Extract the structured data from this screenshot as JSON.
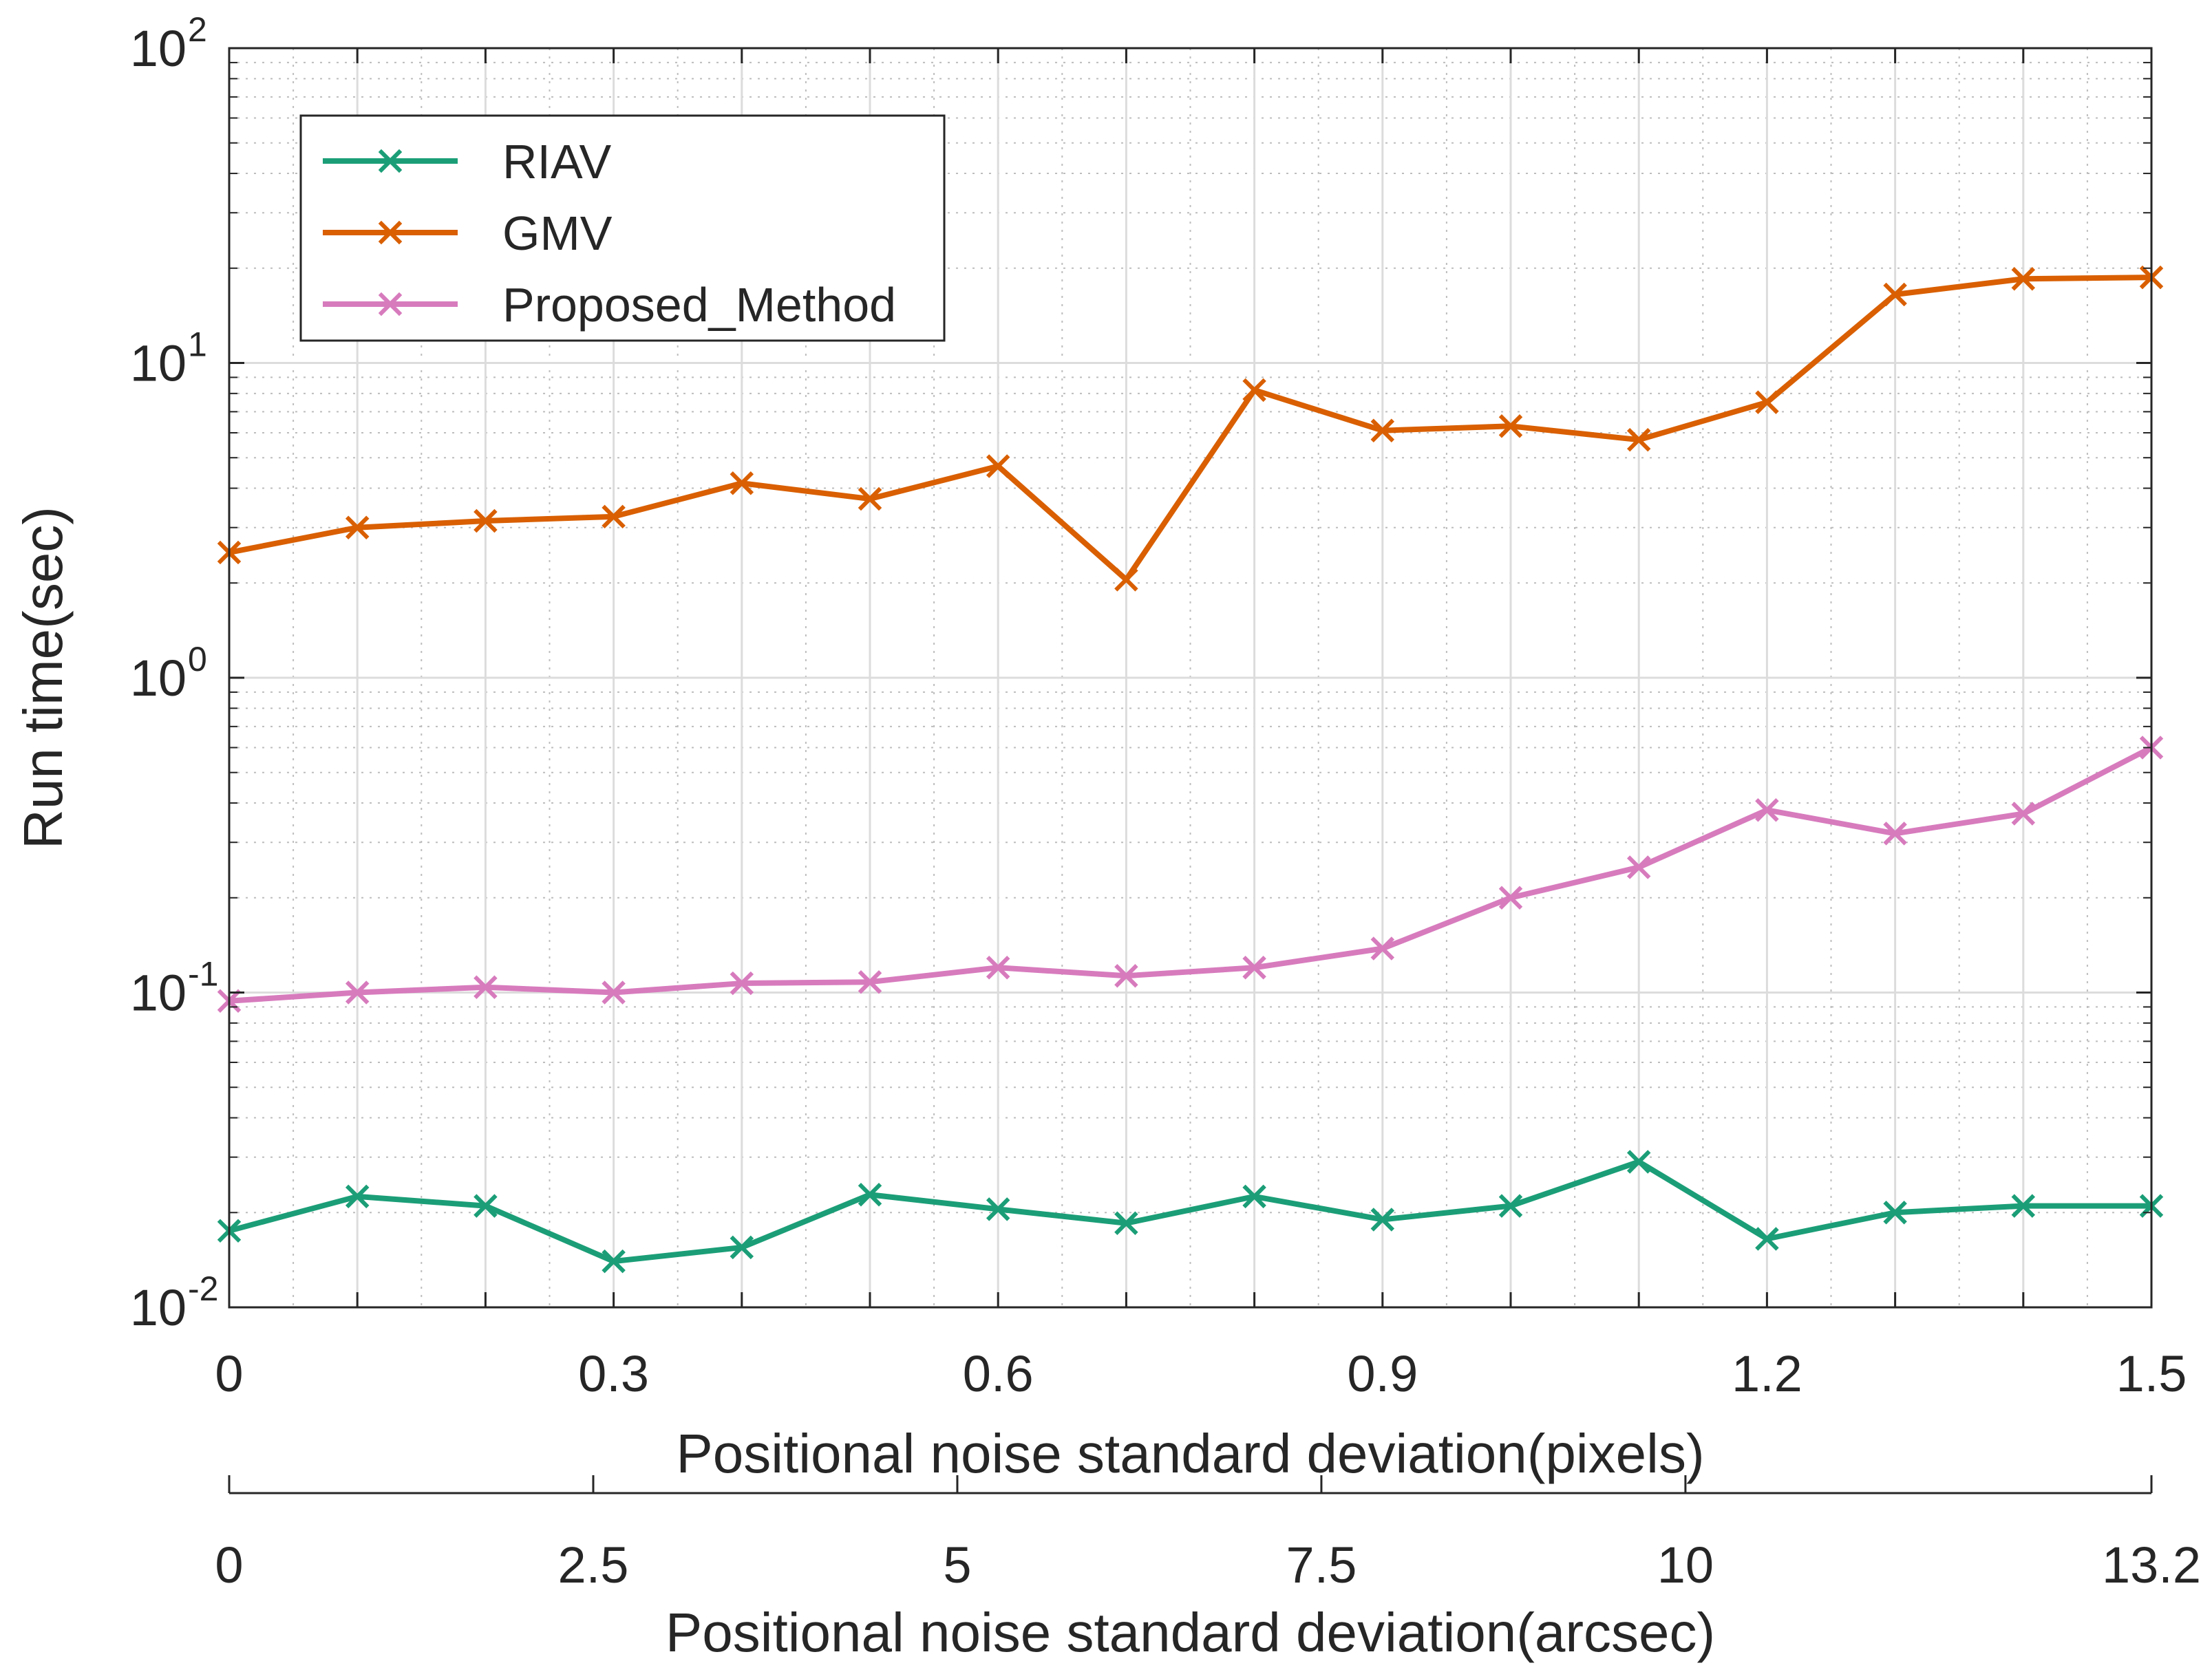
{
  "chart_data": {
    "type": "line",
    "yscale": "log",
    "ylabel": "Run time(sec)",
    "ylim": [
      0.01,
      100
    ],
    "y_ticks": [
      {
        "value": 0.01,
        "base": "10",
        "exp": "-2"
      },
      {
        "value": 0.1,
        "base": "10",
        "exp": "-1"
      },
      {
        "value": 1,
        "base": "10",
        "exp": "0"
      },
      {
        "value": 10,
        "base": "10",
        "exp": "1"
      },
      {
        "value": 100,
        "base": "10",
        "exp": "2"
      }
    ],
    "xlabel": "Positional noise standard deviation(pixels)",
    "xlim": [
      0,
      1.5
    ],
    "x_ticks": [
      "0",
      "0.3",
      "0.6",
      "0.9",
      "1.2",
      "1.5"
    ],
    "x_tick_values": [
      0,
      0.3,
      0.6,
      0.9,
      1.2,
      1.5
    ],
    "x2label": "Positional noise standard deviation(arcsec)",
    "x2lim": [
      0,
      13.2
    ],
    "x2_ticks": [
      "0",
      "2.5",
      "5",
      "7.5",
      "10",
      "13.2"
    ],
    "x2_tick_values": [
      0,
      2.5,
      5,
      7.5,
      10,
      13.2
    ],
    "grid": true,
    "legend_position": "top-left",
    "x": [
      0,
      0.1,
      0.2,
      0.3,
      0.4,
      0.5,
      0.6,
      0.7,
      0.8,
      0.9,
      1.0,
      1.1,
      1.2,
      1.3,
      1.4,
      1.5
    ],
    "series": [
      {
        "name": "RIAV",
        "color": "#1b9e77",
        "marker": "x",
        "values": [
          0.0175,
          0.0225,
          0.021,
          0.014,
          0.0155,
          0.0228,
          0.0205,
          0.0185,
          0.0225,
          0.019,
          0.021,
          0.029,
          0.0165,
          0.02,
          0.021,
          0.021
        ]
      },
      {
        "name": "GMV",
        "color": "#d95f02",
        "marker": "x",
        "values": [
          2.5,
          3.0,
          3.15,
          3.25,
          4.15,
          3.7,
          4.7,
          2.05,
          8.2,
          6.1,
          6.3,
          5.7,
          7.5,
          16.5,
          18.5,
          18.7
        ]
      },
      {
        "name": "Proposed_Method",
        "color": "#e7298a",
        "display_color": "#d77bbd",
        "marker": "x",
        "values": [
          0.094,
          0.1,
          0.104,
          0.1,
          0.107,
          0.108,
          0.12,
          0.113,
          0.12,
          0.138,
          0.2,
          0.25,
          0.38,
          0.32,
          0.37,
          0.6
        ]
      }
    ]
  }
}
